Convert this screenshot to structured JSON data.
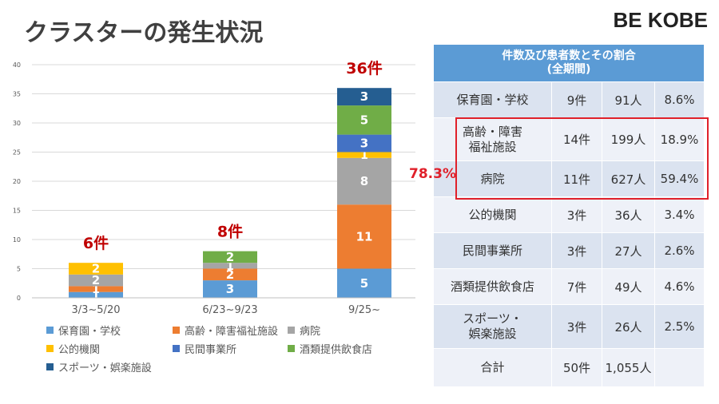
{
  "title": "クラスターの発生状況",
  "brand": "BE KOBE",
  "chart_data": {
    "type": "bar",
    "stacked": true,
    "categories": [
      "3/3~5/20",
      "6/23~9/23",
      "9/25~"
    ],
    "totals": [
      "6件",
      "8件",
      "36件"
    ],
    "ylim": [
      0,
      40
    ],
    "yticks": [
      0,
      5,
      10,
      15,
      20,
      25,
      30,
      35,
      40
    ],
    "series": [
      {
        "name": "保育園・学校",
        "color": "#5b9bd5",
        "values": [
          1,
          3,
          5
        ]
      },
      {
        "name": "高齢・障害福祉施設",
        "color": "#ed7d31",
        "values": [
          1,
          2,
          11
        ]
      },
      {
        "name": "病院",
        "color": "#a5a5a5",
        "values": [
          2,
          1,
          8
        ]
      },
      {
        "name": "公的機関",
        "color": "#ffc000",
        "values": [
          2,
          0,
          1
        ]
      },
      {
        "name": "民間事業所",
        "color": "#4472c4",
        "values": [
          0,
          0,
          3
        ]
      },
      {
        "name": "酒類提供飲食店",
        "color": "#70ad47",
        "values": [
          0,
          2,
          5
        ]
      },
      {
        "name": "スポーツ・娯楽施設",
        "color": "#255e91",
        "values": [
          0,
          0,
          3
        ]
      }
    ],
    "legend": "bottom"
  },
  "table": {
    "header_line1": "件数及び患者数とその割合",
    "header_line2": "(全期間)",
    "rows": [
      {
        "name": "保育園・学校",
        "count": "9件",
        "patients": "91人",
        "ratio": "8.6%"
      },
      {
        "name": "高齢・障害\n福祉施設",
        "count": "14件",
        "patients": "199人",
        "ratio": "18.9%"
      },
      {
        "name": "病院",
        "count": "11件",
        "patients": "627人",
        "ratio": "59.4%"
      },
      {
        "name": "公的機関",
        "count": "3件",
        "patients": "36人",
        "ratio": "3.4%"
      },
      {
        "name": "民間事業所",
        "count": "3件",
        "patients": "27人",
        "ratio": "2.6%"
      },
      {
        "name": "酒類提供飲食店",
        "count": "7件",
        "patients": "49人",
        "ratio": "4.6%"
      },
      {
        "name": "スポーツ・\n娯楽施設",
        "count": "3件",
        "patients": "26人",
        "ratio": "2.5%"
      },
      {
        "name": "合計",
        "count": "50件",
        "patients": "1,055人",
        "ratio": ""
      }
    ],
    "highlight_label": "78.3%",
    "highlight_color": "#e0202a"
  }
}
